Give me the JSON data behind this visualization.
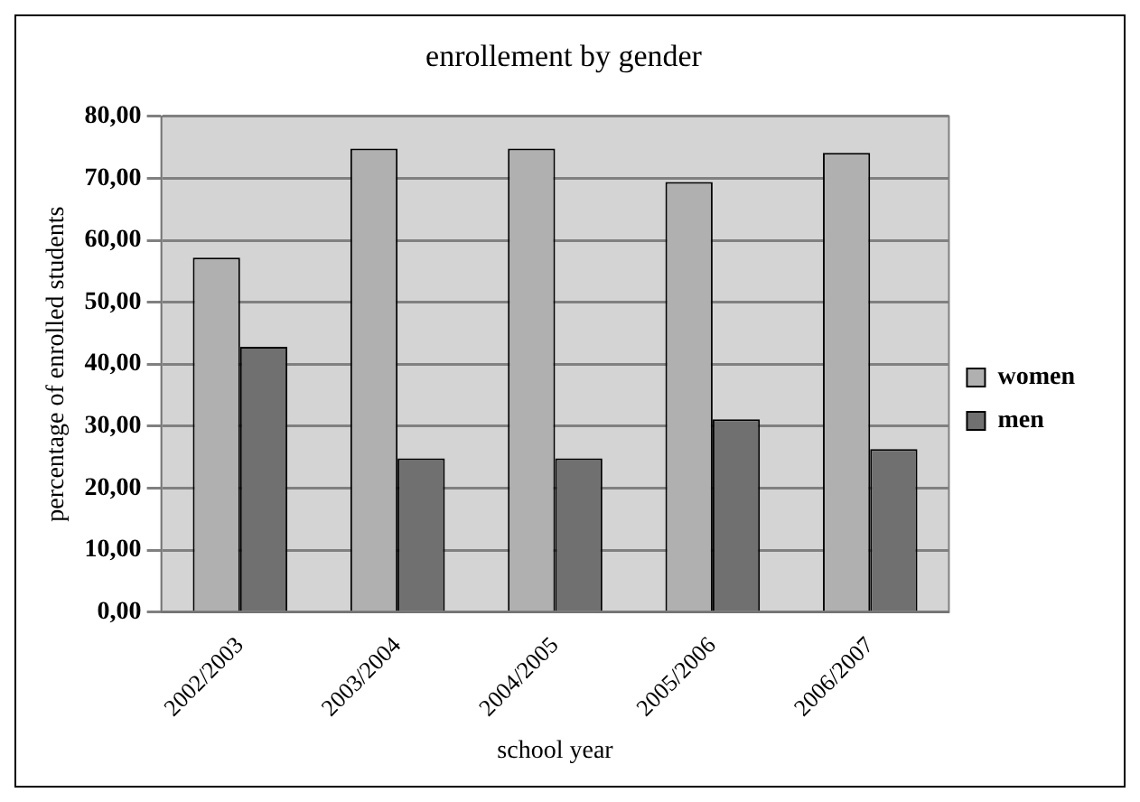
{
  "chart_data": {
    "type": "bar",
    "title": "enrollement by gender",
    "xlabel": "school year",
    "ylabel": "percentage of enrolled students",
    "categories": [
      "2002/2003",
      "2003/2004",
      "2004/2005",
      "2005/2006",
      "2006/2007"
    ],
    "series": [
      {
        "name": "women",
        "color": "#b0b0b0",
        "values": [
          57.2,
          74.8,
          74.8,
          69.4,
          74.1
        ]
      },
      {
        "name": "men",
        "color": "#707070",
        "values": [
          42.8,
          24.8,
          24.8,
          31.1,
          26.3
        ]
      }
    ],
    "ylim": [
      0,
      80
    ],
    "yticks": [
      {
        "value": 0,
        "label": "0,00"
      },
      {
        "value": 10,
        "label": "10,00"
      },
      {
        "value": 20,
        "label": "20,00"
      },
      {
        "value": 30,
        "label": "30,00"
      },
      {
        "value": 40,
        "label": "40,00"
      },
      {
        "value": 50,
        "label": "50,00"
      },
      {
        "value": 60,
        "label": "60,00"
      },
      {
        "value": 70,
        "label": "70,00"
      },
      {
        "value": 80,
        "label": "80,00"
      }
    ],
    "grid": "y",
    "legend": "right"
  }
}
